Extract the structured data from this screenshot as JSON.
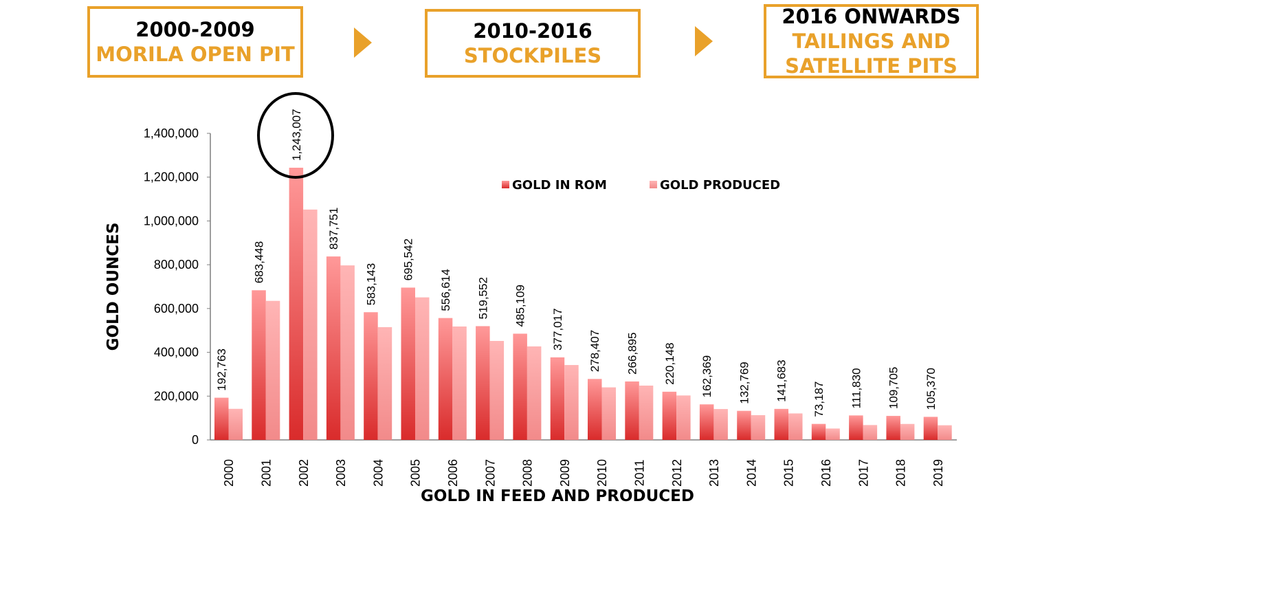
{
  "phases": [
    {
      "year": "2000-2009",
      "desc": [
        "MORILA OPEN PIT"
      ]
    },
    {
      "year": "2010-2016",
      "desc": [
        "STOCKPILES"
      ]
    },
    {
      "year": "2016 ONWARDS",
      "desc": [
        "TAILINGS AND",
        "SATELLITE PITS"
      ]
    }
  ],
  "colors": {
    "accent": "#E9A12A",
    "rom_top": "#FF9999",
    "rom_bottom": "#D92B2B",
    "produced_top": "#FFB5B5",
    "produced_bottom": "#F28A8A"
  },
  "chart_data": {
    "type": "bar",
    "title": "",
    "xlabel": "GOLD IN FEED AND PRODUCED",
    "ylabel": "GOLD OUNCES",
    "ylim": [
      0,
      1400000
    ],
    "yticks": [
      0,
      200000,
      400000,
      600000,
      800000,
      1000000,
      1200000,
      1400000
    ],
    "ytick_labels": [
      "0",
      "200,000",
      "400,000",
      "600,000",
      "800,000",
      "1,000,000",
      "1,200,000",
      "1,400,000"
    ],
    "categories": [
      "2000",
      "2001",
      "2002",
      "2003",
      "2004",
      "2005",
      "2006",
      "2007",
      "2008",
      "2009",
      "2010",
      "2011",
      "2012",
      "2013",
      "2014",
      "2015",
      "2016",
      "2017",
      "2018",
      "2019"
    ],
    "series": [
      {
        "name": "GOLD IN ROM",
        "values": [
          192763,
          683448,
          1243007,
          837751,
          583143,
          695542,
          556614,
          519552,
          485109,
          377017,
          278407,
          266895,
          220148,
          162369,
          132769,
          141683,
          73187,
          111830,
          109705,
          105370
        ]
      },
      {
        "name": "GOLD PRODUCED",
        "values": [
          142000,
          635000,
          1052000,
          797000,
          515000,
          651000,
          518000,
          452000,
          427000,
          342000,
          240000,
          248000,
          203000,
          141000,
          113000,
          121000,
          52000,
          68000,
          73000,
          67000
        ]
      }
    ],
    "data_labels": [
      "192,763",
      "683,448",
      "1,243,007",
      "837,751",
      "583,143",
      "695,542",
      "556,614",
      "519,552",
      "485,109",
      "377,017",
      "278,407",
      "266,895",
      "220,148",
      "162,369",
      "132,769",
      "141,683",
      "73,187",
      "111,830",
      "109,705",
      "105,370"
    ],
    "highlight": "2002",
    "grid": false,
    "legend_position": "top-center"
  }
}
